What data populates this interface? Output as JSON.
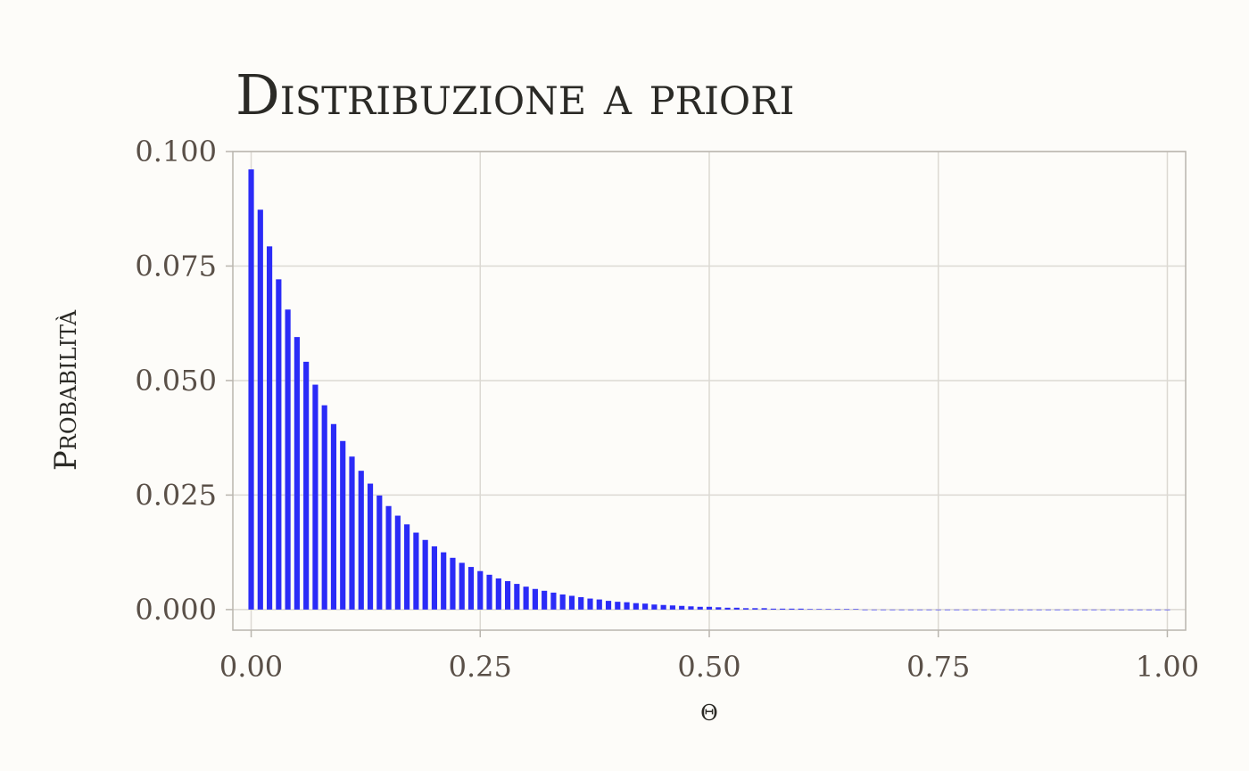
{
  "chart_data": {
    "type": "bar",
    "title": "Distribuzione a priori",
    "xlabel": "θ",
    "ylabel": "Probabilità",
    "xlim": [
      -0.02,
      1.02
    ],
    "ylim": [
      -0.0045,
      0.1
    ],
    "x_ticks": [
      0,
      0.25,
      0.5,
      0.75,
      1
    ],
    "x_tick_labels": [
      "0.00",
      "0.25",
      "0.50",
      "0.75",
      "1.00"
    ],
    "y_ticks": [
      0,
      0.025,
      0.05,
      0.075,
      0.1
    ],
    "y_tick_labels": [
      "0.000",
      "0.025",
      "0.050",
      "0.075",
      "0.100"
    ],
    "grid": true,
    "bar_color": "#2b2bf7",
    "x": [
      0,
      0.01,
      0.02,
      0.03,
      0.04,
      0.05,
      0.06,
      0.07,
      0.08,
      0.09,
      0.1,
      0.11,
      0.12,
      0.13,
      0.14,
      0.15,
      0.16,
      0.17,
      0.18,
      0.19,
      0.2,
      0.21,
      0.22,
      0.23,
      0.24,
      0.25,
      0.26,
      0.27,
      0.28,
      0.29,
      0.3,
      0.31,
      0.32,
      0.33,
      0.34,
      0.35,
      0.36,
      0.37,
      0.38,
      0.39,
      0.4,
      0.41,
      0.42,
      0.43,
      0.44,
      0.45,
      0.46,
      0.47,
      0.48,
      0.49,
      0.5,
      0.51,
      0.52,
      0.53,
      0.54,
      0.55,
      0.56,
      0.57,
      0.58,
      0.59,
      0.6,
      0.61,
      0.62,
      0.63,
      0.64,
      0.65,
      0.66,
      0.67,
      0.68,
      0.69,
      0.7,
      0.71,
      0.72,
      0.73,
      0.74,
      0.75,
      0.76,
      0.77,
      0.78,
      0.79,
      0.8,
      0.81,
      0.82,
      0.83,
      0.84,
      0.85,
      0.86,
      0.87,
      0.88,
      0.89,
      0.9,
      0.91,
      0.92,
      0.93,
      0.94,
      0.95,
      0.96,
      0.97,
      0.98,
      0.99,
      1
    ],
    "values": [
      0.0961,
      0.0873,
      0.0793,
      0.0721,
      0.0655,
      0.0595,
      0.0541,
      0.0491,
      0.0446,
      0.0405,
      0.0368,
      0.0334,
      0.0303,
      0.0275,
      0.0249,
      0.0226,
      0.0205,
      0.0186,
      0.0168,
      0.0152,
      0.0138,
      0.0125,
      0.0113,
      0.0102,
      0.0093,
      0.0084,
      0.0076,
      0.0068,
      0.0062,
      0.0056,
      0.005,
      0.0045,
      0.0041,
      0.0037,
      0.0033,
      0.003,
      0.0027,
      0.0024,
      0.0022,
      0.0019,
      0.0017,
      0.0016,
      0.0014,
      0.0013,
      0.0011,
      0.001,
      0.0009,
      0.0008,
      0.0007,
      0.0006,
      0.0006,
      0.0005,
      0.0004,
      0.0004,
      0.0003,
      0.0003,
      0.0003,
      0.0002,
      0.0002,
      0.0002,
      0.0002,
      0.0001,
      0.0001,
      0.0001,
      0.0001,
      0.0001,
      0.0001,
      0,
      0,
      0,
      0,
      0,
      0,
      0,
      0,
      0,
      0,
      0,
      0,
      0,
      0,
      0,
      0,
      0,
      0,
      0,
      0,
      0,
      0,
      0,
      0,
      0,
      0,
      0,
      0,
      0,
      0,
      0,
      0,
      0,
      0
    ]
  }
}
